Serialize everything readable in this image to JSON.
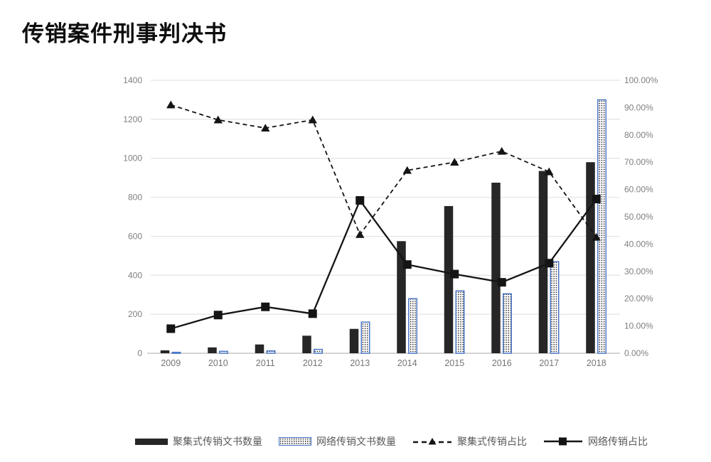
{
  "title": "传销案件刑事判决书",
  "chart_data": {
    "type": "bar",
    "subtype": "combo-bar-line",
    "title": "传销案件刑事判决书",
    "categories": [
      "2009",
      "2010",
      "2011",
      "2012",
      "2013",
      "2014",
      "2015",
      "2016",
      "2017",
      "2018"
    ],
    "bar_series": [
      {
        "name": "聚集式传销文书数量",
        "axis": "left",
        "fill": "solid",
        "color": "#262626",
        "values": [
          15,
          30,
          45,
          90,
          125,
          575,
          755,
          875,
          935,
          980
        ]
      },
      {
        "name": "网络传销文书数量",
        "axis": "left",
        "fill": "dot-pattern",
        "border_color": "#4472c4",
        "dot_color": "#111111",
        "values": [
          5,
          10,
          12,
          20,
          160,
          280,
          320,
          305,
          470,
          1300
        ]
      }
    ],
    "line_series": [
      {
        "name": "聚集式传销占比",
        "axis": "right",
        "style": "dashed",
        "marker": "triangle",
        "color": "#141414",
        "values_pct": [
          91,
          85.5,
          82.5,
          85.5,
          43.5,
          67,
          70,
          74,
          66.5,
          42.5
        ]
      },
      {
        "name": "网络传销占比",
        "axis": "right",
        "style": "solid",
        "marker": "square",
        "color": "#141414",
        "values_pct": [
          9,
          14,
          17,
          14.5,
          56,
          32.5,
          29,
          26,
          33,
          56.5
        ]
      }
    ],
    "left_axis": {
      "min": 0,
      "max": 1400,
      "step": 200,
      "tick_labels": [
        "0",
        "200",
        "400",
        "600",
        "800",
        "1000",
        "1200",
        "1400"
      ]
    },
    "right_axis": {
      "min": 0,
      "max": 100,
      "step": 10,
      "tick_labels": [
        "0.00%",
        "10.00%",
        "20.00%",
        "30.00%",
        "40.00%",
        "50.00%",
        "60.00%",
        "70.00%",
        "80.00%",
        "90.00%",
        "100.00%"
      ]
    },
    "grid": "horizontal",
    "legend_position": "bottom"
  },
  "legend": {
    "items": [
      {
        "label": "聚集式传销文书数量",
        "swatch": "solid-bar"
      },
      {
        "label": "网络传销文书数量",
        "swatch": "dotted-bar"
      },
      {
        "label": "聚集式传销占比",
        "swatch": "dashed-line-triangle"
      },
      {
        "label": "网络传销占比",
        "swatch": "solid-line-square"
      }
    ]
  },
  "colors": {
    "bar_dark": "#262626",
    "bar_pattern_border": "#4472c4",
    "line": "#141414",
    "gridline": "#e3e3e3",
    "axis_line": "#c8c8c8",
    "axis_text": "#7f7f7f",
    "legend_text": "#595959",
    "background": "#ffffff"
  }
}
